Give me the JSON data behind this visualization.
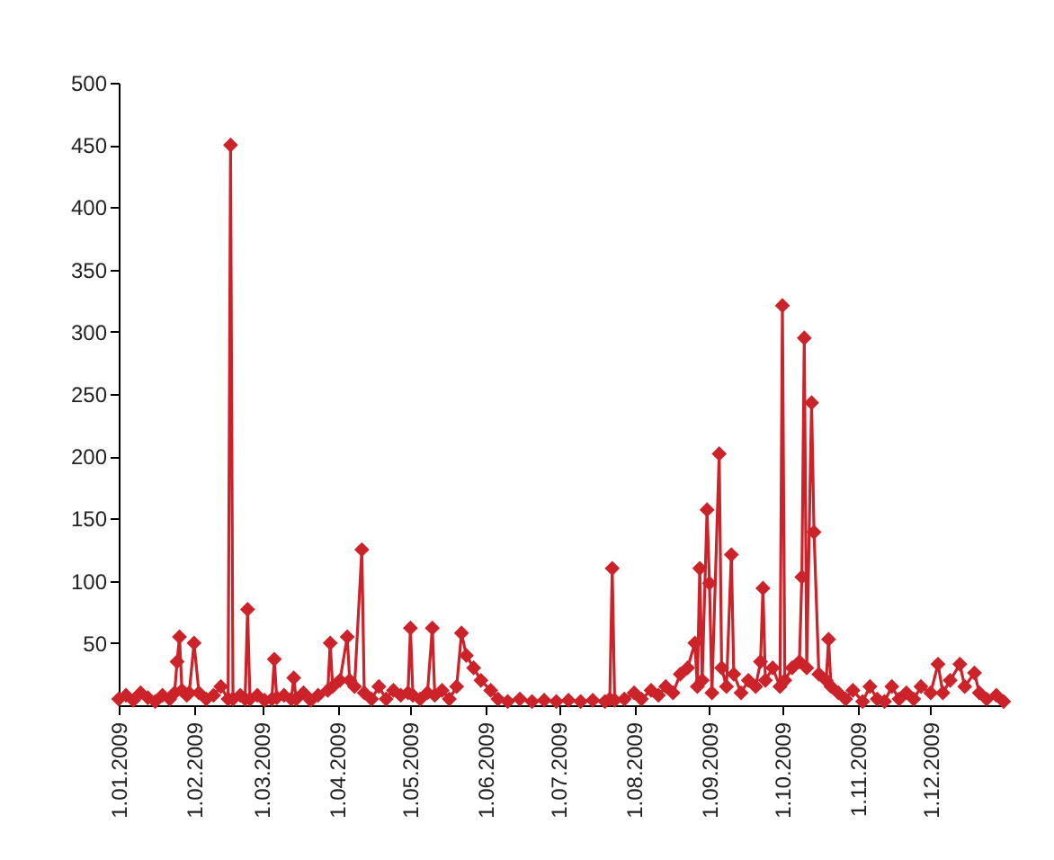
{
  "chart_data": {
    "type": "line",
    "marker": "diamond",
    "line_style": "solid",
    "grid": false,
    "legend": false,
    "xlim": [
      "2009-01-01",
      "2009-12-31"
    ],
    "ylim": [
      0,
      500
    ],
    "xticks": [
      {
        "value": "2009-01-01",
        "label": "1.01.2009"
      },
      {
        "value": "2009-02-01",
        "label": "1.02.2009"
      },
      {
        "value": "2009-03-01",
        "label": "1.03.2009"
      },
      {
        "value": "2009-04-01",
        "label": "1.04.2009"
      },
      {
        "value": "2009-05-01",
        "label": "1.05.2009"
      },
      {
        "value": "2009-06-01",
        "label": "1.06.2009"
      },
      {
        "value": "2009-07-01",
        "label": "1.07.2009"
      },
      {
        "value": "2009-08-01",
        "label": "1.08.2009"
      },
      {
        "value": "2009-09-01",
        "label": "1.09.2009"
      },
      {
        "value": "2009-10-01",
        "label": "1.10.2009"
      },
      {
        "value": "2009-11-01",
        "label": "1.11.2009"
      },
      {
        "value": "2009-12-01",
        "label": "1.12.2009"
      }
    ],
    "yticks": [
      50,
      100,
      150,
      200,
      250,
      300,
      350,
      400,
      450,
      500
    ],
    "x": [
      "2009-01-01",
      "2009-01-04",
      "2009-01-07",
      "2009-01-10",
      "2009-01-13",
      "2009-01-16",
      "2009-01-19",
      "2009-01-22",
      "2009-01-24",
      "2009-01-25",
      "2009-01-26",
      "2009-01-27",
      "2009-01-29",
      "2009-01-30",
      "2009-02-01",
      "2009-02-03",
      "2009-02-06",
      "2009-02-09",
      "2009-02-12",
      "2009-02-15",
      "2009-02-16",
      "2009-02-17",
      "2009-02-20",
      "2009-02-22",
      "2009-02-23",
      "2009-02-24",
      "2009-02-27",
      "2009-03-02",
      "2009-03-05",
      "2009-03-06",
      "2009-03-07",
      "2009-03-10",
      "2009-03-13",
      "2009-03-14",
      "2009-03-15",
      "2009-03-18",
      "2009-03-21",
      "2009-03-24",
      "2009-03-28",
      "2009-03-29",
      "2009-03-30",
      "2009-04-02",
      "2009-04-05",
      "2009-04-06",
      "2009-04-08",
      "2009-04-11",
      "2009-04-12",
      "2009-04-15",
      "2009-04-18",
      "2009-04-21",
      "2009-04-24",
      "2009-04-27",
      "2009-04-30",
      "2009-05-01",
      "2009-05-02",
      "2009-05-05",
      "2009-05-08",
      "2009-05-10",
      "2009-05-11",
      "2009-05-14",
      "2009-05-17",
      "2009-05-20",
      "2009-05-22",
      "2009-05-24",
      "2009-05-27",
      "2009-05-30",
      "2009-06-03",
      "2009-06-06",
      "2009-06-10",
      "2009-06-15",
      "2009-06-20",
      "2009-06-25",
      "2009-06-30",
      "2009-07-05",
      "2009-07-10",
      "2009-07-15",
      "2009-07-20",
      "2009-07-22",
      "2009-07-23",
      "2009-07-24",
      "2009-07-28",
      "2009-08-01",
      "2009-08-04",
      "2009-08-08",
      "2009-08-11",
      "2009-08-14",
      "2009-08-17",
      "2009-08-20",
      "2009-08-23",
      "2009-08-26",
      "2009-08-27",
      "2009-08-28",
      "2009-08-29",
      "2009-08-31",
      "2009-09-01",
      "2009-09-02",
      "2009-09-05",
      "2009-09-06",
      "2009-09-08",
      "2009-09-10",
      "2009-09-11",
      "2009-09-14",
      "2009-09-17",
      "2009-09-20",
      "2009-09-22",
      "2009-09-23",
      "2009-09-24",
      "2009-09-27",
      "2009-09-30",
      "2009-10-01",
      "2009-10-02",
      "2009-10-05",
      "2009-10-08",
      "2009-10-09",
      "2009-10-10",
      "2009-10-11",
      "2009-10-13",
      "2009-10-14",
      "2009-10-16",
      "2009-10-19",
      "2009-10-20",
      "2009-10-21",
      "2009-10-24",
      "2009-10-27",
      "2009-10-30",
      "2009-11-03",
      "2009-11-06",
      "2009-11-09",
      "2009-11-12",
      "2009-11-15",
      "2009-11-18",
      "2009-11-21",
      "2009-11-24",
      "2009-11-27",
      "2009-12-01",
      "2009-12-04",
      "2009-12-06",
      "2009-12-09",
      "2009-12-13",
      "2009-12-15",
      "2009-12-19",
      "2009-12-21",
      "2009-12-24",
      "2009-12-28",
      "2009-12-31"
    ],
    "series": [
      {
        "color": "#cc2229",
        "values": [
          5,
          8,
          4,
          10,
          6,
          3,
          8,
          5,
          10,
          35,
          55,
          12,
          8,
          10,
          50,
          10,
          5,
          8,
          15,
          5,
          450,
          5,
          8,
          5,
          77,
          5,
          8,
          4,
          5,
          37,
          6,
          8,
          5,
          22,
          5,
          10,
          4,
          8,
          12,
          50,
          15,
          20,
          55,
          20,
          15,
          125,
          10,
          5,
          15,
          5,
          12,
          8,
          10,
          62,
          8,
          5,
          10,
          62,
          8,
          12,
          5,
          15,
          58,
          40,
          30,
          20,
          12,
          5,
          3,
          5,
          3,
          4,
          3,
          4,
          3,
          4,
          3,
          5,
          110,
          4,
          5,
          10,
          5,
          12,
          8,
          15,
          10,
          25,
          30,
          50,
          15,
          110,
          20,
          157,
          98,
          10,
          202,
          30,
          15,
          121,
          25,
          10,
          20,
          15,
          35,
          94,
          20,
          30,
          15,
          321,
          20,
          30,
          35,
          103,
          295,
          30,
          243,
          139,
          25,
          20,
          53,
          15,
          10,
          5,
          12,
          3,
          15,
          5,
          3,
          15,
          5,
          10,
          5,
          15,
          10,
          33,
          10,
          20,
          33,
          15,
          26,
          10,
          5,
          8,
          3
        ]
      }
    ]
  }
}
